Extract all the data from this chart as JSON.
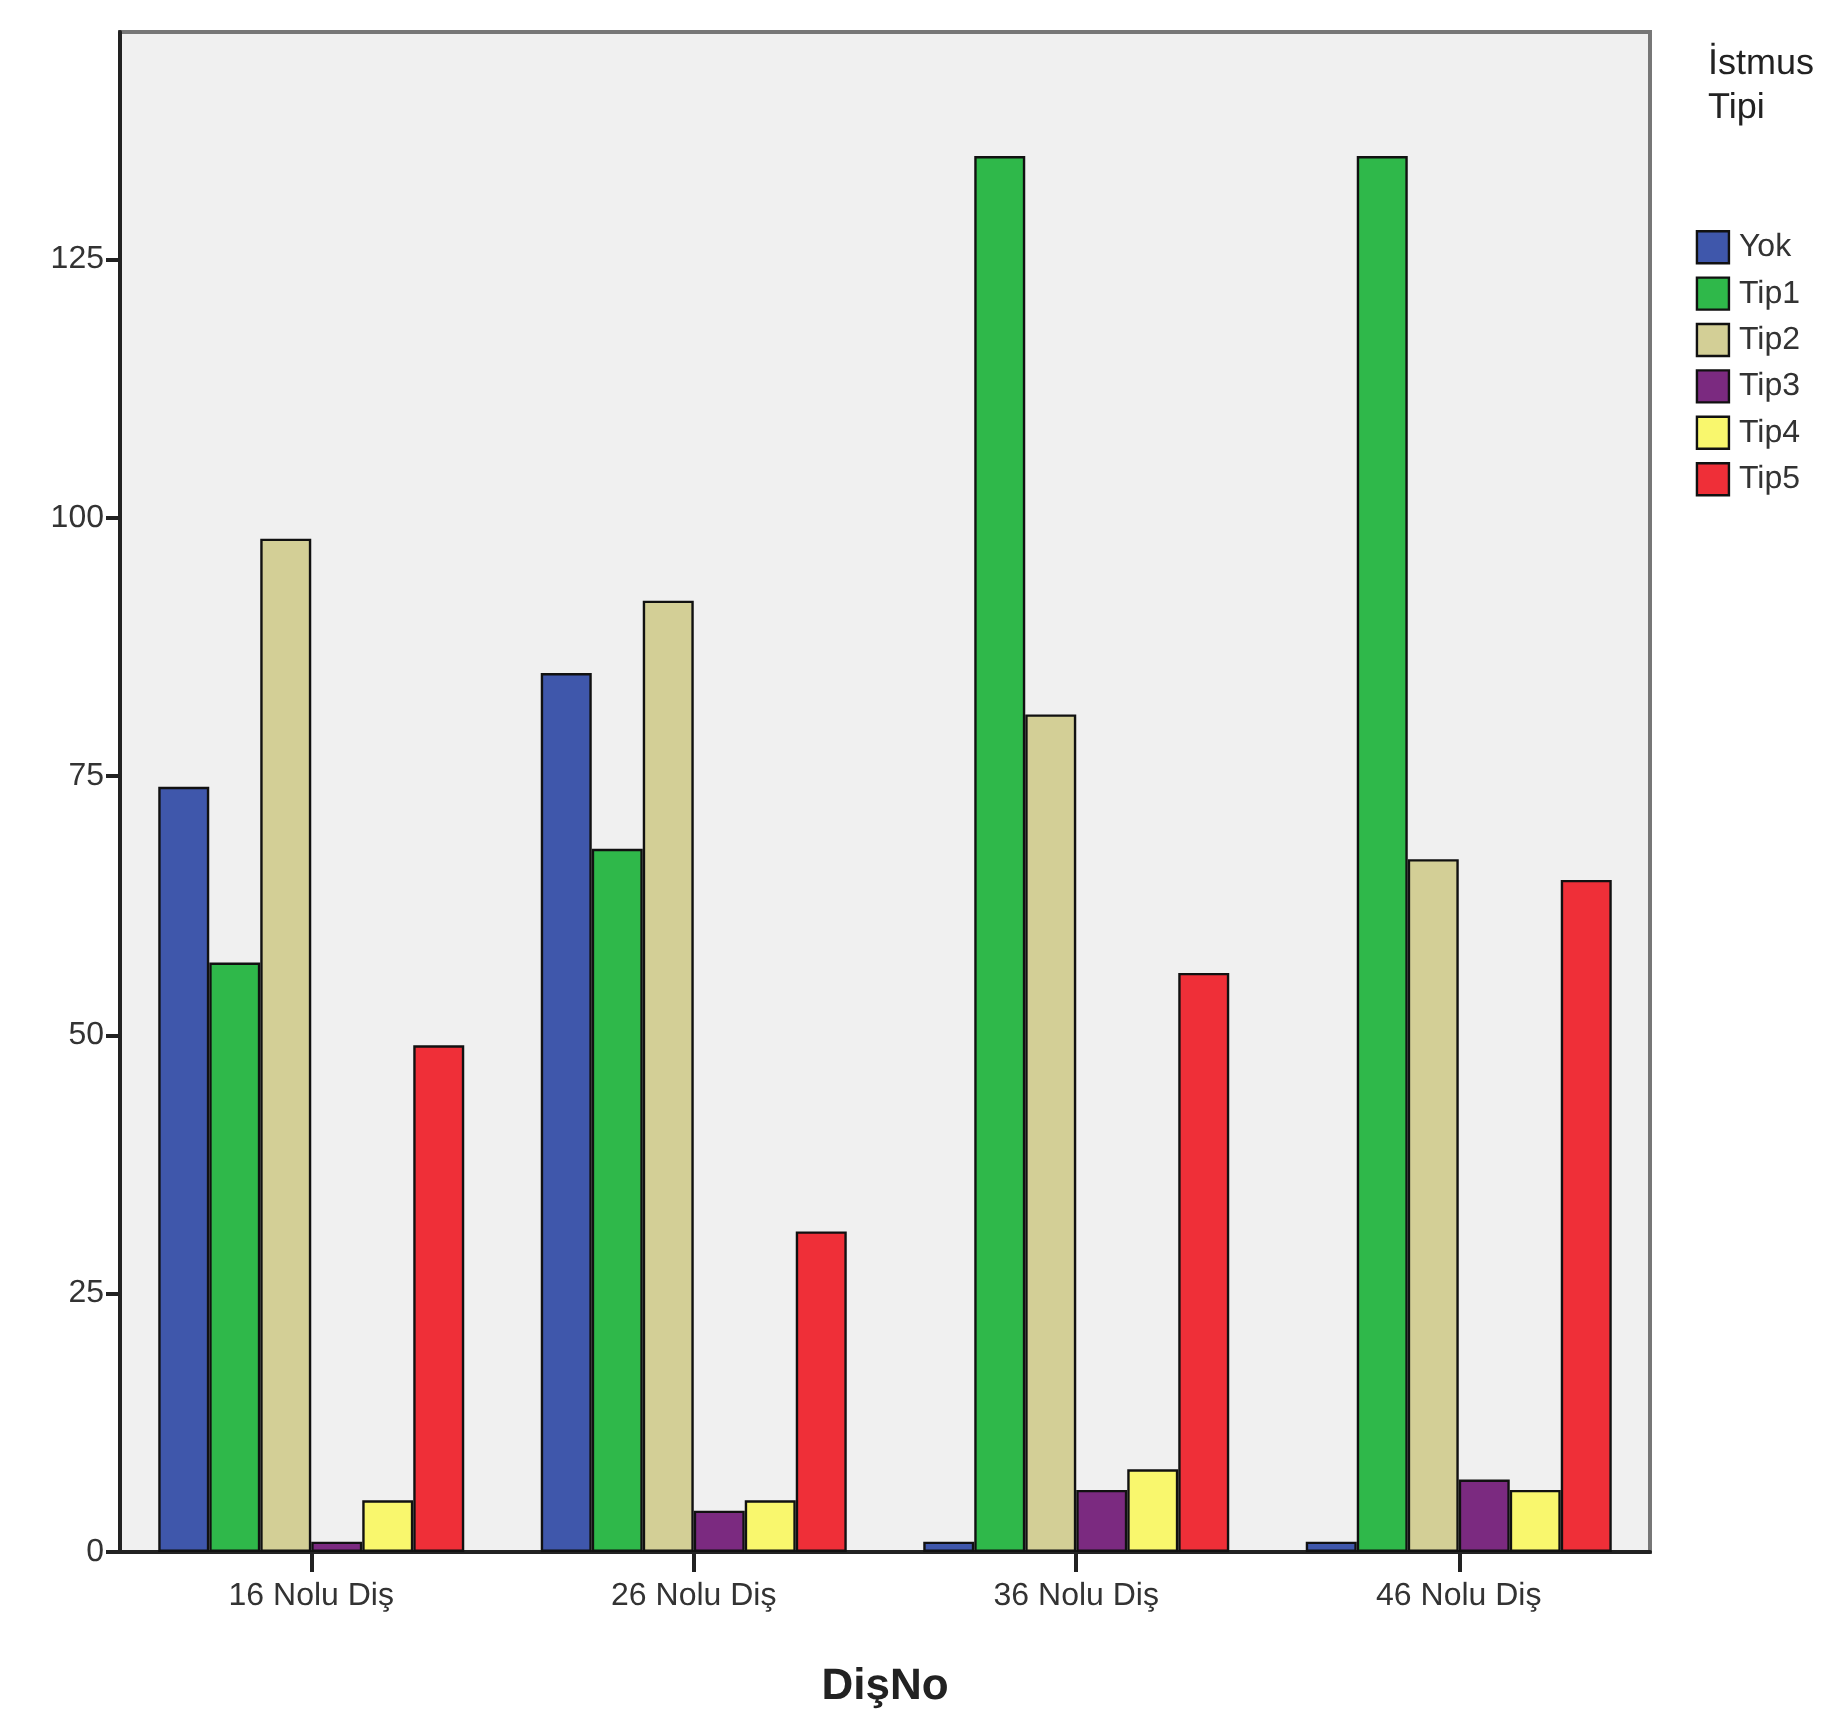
{
  "chart_data": {
    "type": "bar",
    "xlabel": "DişNo",
    "legend_title": "İstmus\nTipi",
    "categories": [
      "16 Nolu Diş",
      "26 Nolu Diş",
      "36 Nolu Diş",
      "46 Nolu Diş"
    ],
    "series": [
      {
        "name": "Yok",
        "color": "#3f57ab",
        "values": [
          74,
          85,
          1,
          1
        ]
      },
      {
        "name": "Tip1",
        "color": "#2fb84a",
        "values": [
          57,
          68,
          135,
          135
        ]
      },
      {
        "name": "Tip2",
        "color": "#d3cf96",
        "values": [
          98,
          92,
          81,
          67
        ]
      },
      {
        "name": "Tip3",
        "color": "#7b2a80",
        "values": [
          1,
          4,
          6,
          7
        ]
      },
      {
        "name": "Tip4",
        "color": "#f9f76d",
        "values": [
          5,
          5,
          8,
          6
        ]
      },
      {
        "name": "Tip5",
        "color": "#ef2f38",
        "values": [
          49,
          31,
          56,
          65
        ]
      }
    ],
    "ylim": [
      0,
      147
    ],
    "yticks": [
      0,
      25,
      50,
      75,
      100,
      125
    ],
    "grid": false,
    "legend": "top right"
  }
}
